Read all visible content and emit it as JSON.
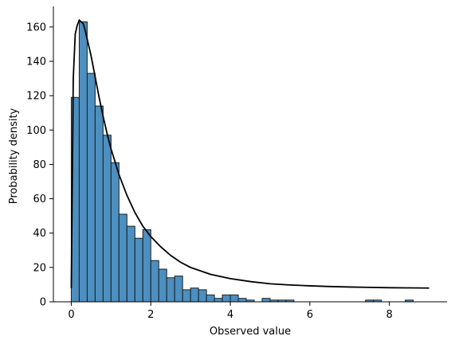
{
  "chart_data": {
    "type": "bar",
    "subtype": "histogram-with-density-curve",
    "xlabel": "Observed value",
    "ylabel": "Probability density",
    "xlim": [
      -0.45,
      9.45
    ],
    "ylim": [
      0,
      172
    ],
    "x_ticks": [
      0,
      2,
      4,
      6,
      8
    ],
    "y_ticks": [
      0,
      20,
      40,
      60,
      80,
      100,
      120,
      140,
      160
    ],
    "grid": false,
    "bar_color": "#4c8fc0",
    "edge_color": "#1f1f1f",
    "curve_color": "#000000",
    "bin_width": 0.2,
    "bins": [
      {
        "x0": 0.0,
        "count": 119
      },
      {
        "x0": 0.2,
        "count": 163
      },
      {
        "x0": 0.4,
        "count": 133
      },
      {
        "x0": 0.6,
        "count": 114
      },
      {
        "x0": 0.8,
        "count": 97
      },
      {
        "x0": 1.0,
        "count": 81
      },
      {
        "x0": 1.2,
        "count": 51
      },
      {
        "x0": 1.4,
        "count": 44
      },
      {
        "x0": 1.6,
        "count": 37
      },
      {
        "x0": 1.8,
        "count": 42
      },
      {
        "x0": 2.0,
        "count": 24
      },
      {
        "x0": 2.2,
        "count": 19
      },
      {
        "x0": 2.4,
        "count": 14
      },
      {
        "x0": 2.6,
        "count": 15
      },
      {
        "x0": 2.8,
        "count": 7
      },
      {
        "x0": 3.0,
        "count": 8
      },
      {
        "x0": 3.2,
        "count": 7
      },
      {
        "x0": 3.4,
        "count": 4
      },
      {
        "x0": 3.6,
        "count": 2
      },
      {
        "x0": 3.8,
        "count": 4
      },
      {
        "x0": 4.0,
        "count": 4
      },
      {
        "x0": 4.2,
        "count": 2
      },
      {
        "x0": 4.4,
        "count": 1
      },
      {
        "x0": 4.6,
        "count": 0
      },
      {
        "x0": 4.8,
        "count": 2
      },
      {
        "x0": 5.0,
        "count": 1
      },
      {
        "x0": 5.2,
        "count": 1
      },
      {
        "x0": 5.4,
        "count": 1
      },
      {
        "x0": 7.4,
        "count": 1
      },
      {
        "x0": 7.6,
        "count": 1
      },
      {
        "x0": 8.4,
        "count": 1
      }
    ],
    "curve": {
      "x": [
        0.0,
        0.05,
        0.1,
        0.15,
        0.2,
        0.25,
        0.3,
        0.35,
        0.4,
        0.5,
        0.6,
        0.7,
        0.8,
        0.9,
        1.0,
        1.2,
        1.4,
        1.6,
        1.8,
        2.0,
        2.25,
        2.5,
        2.75,
        3.0,
        3.5,
        4.0,
        4.5,
        5.0,
        5.5,
        6.0,
        6.5,
        7.0,
        7.5,
        8.0,
        8.5,
        9.0
      ],
      "y": [
        8,
        130,
        156,
        161,
        164,
        163,
        162,
        158,
        153,
        143,
        131,
        119,
        108,
        98,
        89,
        74,
        62,
        52,
        44,
        38,
        32,
        27,
        23,
        20,
        16,
        13.5,
        11.8,
        10.5,
        9.8,
        9.3,
        8.9,
        8.6,
        8.4,
        8.2,
        8.1,
        8.0
      ]
    }
  }
}
